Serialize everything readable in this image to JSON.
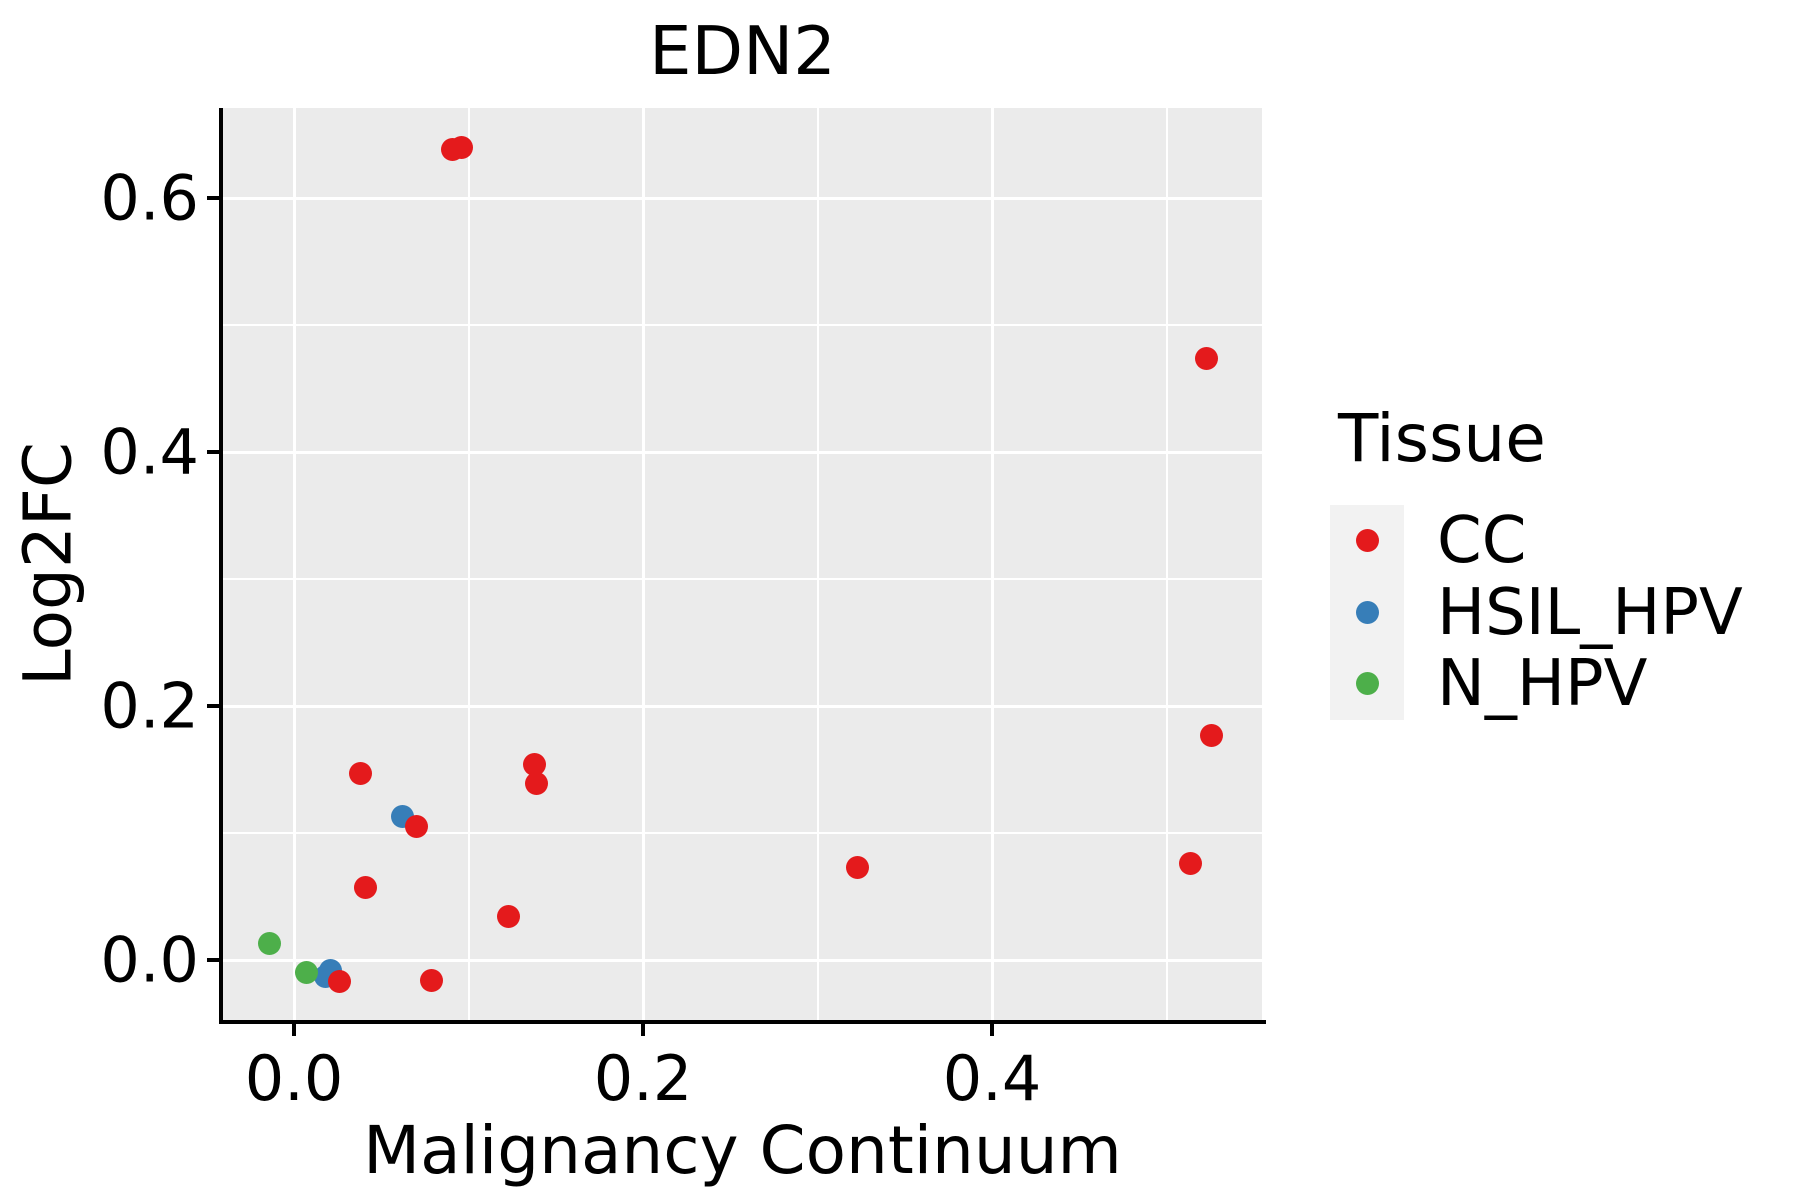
{
  "chart_data": {
    "type": "scatter",
    "title": "EDN2",
    "xlabel": "Malignancy Continuum",
    "ylabel": "Log2FC",
    "xlim": [
      -0.041,
      0.553
    ],
    "ylim": [
      -0.049,
      0.667
    ],
    "x_ticks": [
      0.0,
      0.2,
      0.4
    ],
    "y_ticks": [
      0.0,
      0.2,
      0.4,
      0.6
    ],
    "x_minor_gridlines": [
      0.1,
      0.3,
      0.5
    ],
    "y_minor_gridlines": [
      0.1,
      0.3,
      0.5
    ],
    "grid": true,
    "panel_bg": "#EBEBEB",
    "gridline_color": "#FFFFFF",
    "legend": {
      "title": "Tissue",
      "position": "right"
    },
    "series": [
      {
        "name": "CC",
        "color": "#E41A1C",
        "points": [
          [
            0.091,
            0.638
          ],
          [
            0.096,
            0.64
          ],
          [
            0.038,
            0.147
          ],
          [
            0.07,
            0.105
          ],
          [
            0.138,
            0.154
          ],
          [
            0.139,
            0.139
          ],
          [
            0.041,
            0.057
          ],
          [
            0.123,
            0.034
          ],
          [
            0.026,
            -0.017
          ],
          [
            0.079,
            -0.016
          ],
          [
            0.323,
            0.073
          ],
          [
            0.523,
            0.474
          ],
          [
            0.526,
            0.177
          ],
          [
            0.514,
            0.076
          ]
        ]
      },
      {
        "name": "HSIL_HPV",
        "color": "#377EB8",
        "points": [
          [
            0.062,
            0.113
          ],
          [
            0.021,
            -0.008
          ],
          [
            0.018,
            -0.013
          ]
        ]
      },
      {
        "name": "N_HPV",
        "color": "#4DAF4A",
        "points": [
          [
            -0.014,
            0.013
          ],
          [
            0.007,
            -0.01
          ]
        ]
      }
    ]
  }
}
